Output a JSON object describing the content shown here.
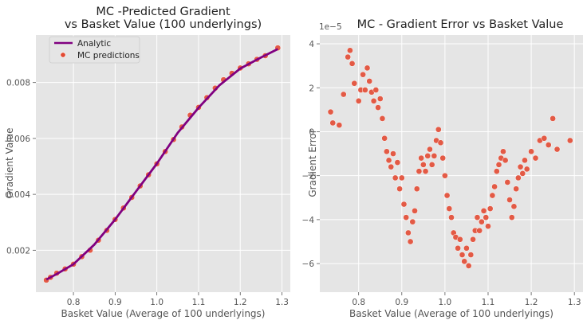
{
  "chart_data": [
    {
      "type": "line",
      "title": "MC -Predicted Gradient\nvs Basket Value (100 underlyings)",
      "xlabel": "Basket Value (Average of 100 underlyings)",
      "ylabel": "Gradient Value",
      "xlim": [
        0.71,
        1.32
      ],
      "ylim": [
        0.0005,
        0.0097
      ],
      "xticks": [
        0.8,
        0.9,
        1.0,
        1.1,
        1.2,
        1.3
      ],
      "xtick_labels": [
        "0.8",
        "0.9",
        "1.0",
        "1.1",
        "1.2",
        "1.3"
      ],
      "yticks": [
        0.002,
        0.004,
        0.006,
        0.008
      ],
      "ytick_labels": [
        "0.002",
        "0.004",
        "0.006",
        "0.008"
      ],
      "grid": true,
      "legend": {
        "placement": "upper-left",
        "entries": [
          "Analytic",
          "MC predictions"
        ]
      },
      "series": [
        {
          "name": "Analytic",
          "kind": "line",
          "color": "#800080",
          "x": [
            0.735,
            0.76,
            0.8,
            0.85,
            0.9,
            0.95,
            1.0,
            1.05,
            1.1,
            1.15,
            1.2,
            1.25,
            1.29
          ],
          "y": [
            0.00095,
            0.00115,
            0.0015,
            0.0022,
            0.0031,
            0.0041,
            0.0051,
            0.0062,
            0.0071,
            0.0079,
            0.0085,
            0.0089,
            0.0092
          ]
        },
        {
          "name": "MC predictions",
          "kind": "scatter",
          "color": "#e24a33",
          "x": [
            0.735,
            0.745,
            0.76,
            0.78,
            0.8,
            0.82,
            0.84,
            0.86,
            0.88,
            0.9,
            0.92,
            0.94,
            0.96,
            0.98,
            1.0,
            1.02,
            1.04,
            1.06,
            1.08,
            1.1,
            1.12,
            1.14,
            1.16,
            1.18,
            1.2,
            1.22,
            1.24,
            1.26,
            1.29
          ],
          "y": [
            0.00093,
            0.00103,
            0.00118,
            0.00133,
            0.0015,
            0.00177,
            0.002,
            0.00236,
            0.00271,
            0.0031,
            0.00351,
            0.00389,
            0.0043,
            0.0047,
            0.00509,
            0.00553,
            0.00596,
            0.00641,
            0.00683,
            0.00711,
            0.00746,
            0.0078,
            0.0081,
            0.00833,
            0.00852,
            0.00867,
            0.00883,
            0.00896,
            0.00924
          ]
        }
      ]
    },
    {
      "type": "scatter",
      "title": "MC - Gradient Error vs Basket Value",
      "xlabel": "Basket Value (Average of 100 underlyings)",
      "ylabel": "Gradient Error",
      "scale_label": "1e−5",
      "xlim": [
        0.71,
        1.32
      ],
      "ylim": [
        -7.3,
        4.4
      ],
      "xticks": [
        0.8,
        0.9,
        1.0,
        1.1,
        1.2,
        1.3
      ],
      "xtick_labels": [
        "0.8",
        "0.9",
        "1.0",
        "1.1",
        "1.2",
        "1.3"
      ],
      "yticks": [
        4,
        2,
        0,
        -2,
        -4,
        -6
      ],
      "ytick_labels": [
        "4",
        "2",
        "0",
        "−2",
        "−4",
        "−6"
      ],
      "grid": true,
      "series": [
        {
          "kind": "scatter",
          "color": "#e24a33",
          "x": [
            0.735,
            0.74,
            0.755,
            0.765,
            0.775,
            0.78,
            0.785,
            0.79,
            0.8,
            0.805,
            0.81,
            0.815,
            0.82,
            0.825,
            0.83,
            0.835,
            0.84,
            0.845,
            0.85,
            0.855,
            0.86,
            0.865,
            0.87,
            0.875,
            0.88,
            0.885,
            0.89,
            0.895,
            0.9,
            0.905,
            0.91,
            0.915,
            0.92,
            0.925,
            0.93,
            0.935,
            0.94,
            0.945,
            0.95,
            0.955,
            0.96,
            0.965,
            0.97,
            0.975,
            0.98,
            0.985,
            0.99,
            0.995,
            1.0,
            1.005,
            1.01,
            1.015,
            1.02,
            1.025,
            1.03,
            1.035,
            1.04,
            1.045,
            1.05,
            1.055,
            1.06,
            1.065,
            1.07,
            1.075,
            1.08,
            1.085,
            1.09,
            1.095,
            1.1,
            1.105,
            1.11,
            1.115,
            1.12,
            1.125,
            1.13,
            1.135,
            1.14,
            1.145,
            1.15,
            1.155,
            1.16,
            1.165,
            1.17,
            1.175,
            1.18,
            1.185,
            1.19,
            1.2,
            1.21,
            1.22,
            1.23,
            1.24,
            1.25,
            1.26,
            1.29
          ],
          "y": [
            0.9,
            0.4,
            0.3,
            1.7,
            3.4,
            3.7,
            3.1,
            2.2,
            1.4,
            1.9,
            2.6,
            1.9,
            2.9,
            2.3,
            1.8,
            1.4,
            1.9,
            1.1,
            1.5,
            0.6,
            -0.3,
            -0.9,
            -1.3,
            -1.6,
            -1.0,
            -2.1,
            -1.4,
            -2.6,
            -2.1,
            -3.3,
            -3.9,
            -4.6,
            -5.0,
            -4.1,
            -3.6,
            -2.6,
            -1.8,
            -1.2,
            -1.5,
            -1.8,
            -1.1,
            -0.8,
            -1.5,
            -1.1,
            -0.4,
            0.1,
            -0.5,
            -1.2,
            -2.0,
            -2.9,
            -3.5,
            -3.9,
            -4.6,
            -4.8,
            -5.3,
            -4.9,
            -5.6,
            -5.9,
            -5.3,
            -6.1,
            -5.6,
            -4.9,
            -4.5,
            -3.9,
            -4.5,
            -4.1,
            -3.6,
            -3.9,
            -4.3,
            -3.5,
            -2.9,
            -2.5,
            -1.8,
            -1.5,
            -1.2,
            -0.9,
            -1.3,
            -2.3,
            -3.1,
            -3.9,
            -3.4,
            -2.6,
            -2.1,
            -1.6,
            -1.9,
            -1.3,
            -1.7,
            -0.9,
            -1.2,
            -0.4,
            -0.3,
            -0.6,
            0.6,
            -0.8,
            -0.4
          ]
        }
      ]
    }
  ]
}
